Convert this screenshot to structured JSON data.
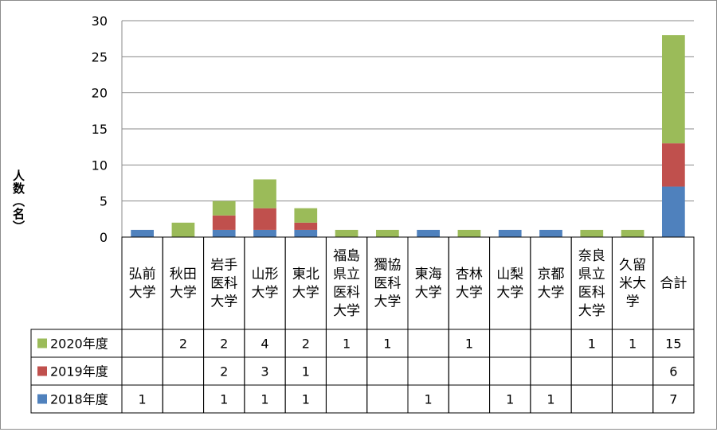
{
  "chart_data": {
    "type": "bar",
    "stacked": true,
    "ylabel": "人数（名）",
    "ylim": [
      0,
      30
    ],
    "yticks": [
      0,
      5,
      10,
      15,
      20,
      25,
      30
    ],
    "grid": true,
    "legend": "data-table-left",
    "categories": [
      [
        "弘前",
        "大学"
      ],
      [
        "秋田",
        "大学"
      ],
      [
        "岩手",
        "医科",
        "大学"
      ],
      [
        "山形",
        "大学"
      ],
      [
        "東北",
        "大学"
      ],
      [
        "福島",
        "県立",
        "医科",
        "大学"
      ],
      [
        "獨協",
        "医科",
        "大学"
      ],
      [
        "東海",
        "大学"
      ],
      [
        "杏林",
        "大学"
      ],
      [
        "山梨",
        "大学"
      ],
      [
        "京都",
        "大学"
      ],
      [
        "奈良",
        "県立",
        "医科",
        "大学"
      ],
      [
        "久留",
        "米大",
        "学"
      ],
      [
        "合計"
      ]
    ],
    "series": [
      {
        "name": "2018年度",
        "color": "#4f81bd",
        "values": [
          1,
          null,
          1,
          1,
          1,
          null,
          null,
          1,
          null,
          1,
          1,
          null,
          null,
          7
        ]
      },
      {
        "name": "2019年度",
        "color": "#c0504d",
        "values": [
          null,
          null,
          2,
          3,
          1,
          null,
          null,
          null,
          null,
          null,
          null,
          null,
          null,
          6
        ]
      },
      {
        "name": "2020年度",
        "color": "#9bbb59",
        "values": [
          null,
          2,
          2,
          4,
          2,
          1,
          1,
          null,
          1,
          null,
          null,
          1,
          1,
          15
        ]
      }
    ],
    "table_row_order": [
      "2020年度",
      "2019年度",
      "2018年度"
    ]
  }
}
